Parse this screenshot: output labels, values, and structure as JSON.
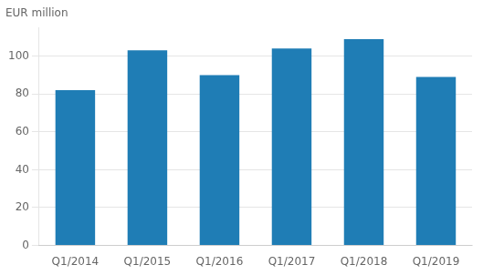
{
  "chart_data": {
    "type": "bar",
    "ylabel": "EUR million",
    "categories": [
      "Q1/2014",
      "Q1/2015",
      "Q1/2016",
      "Q1/2017",
      "Q1/2018",
      "Q1/2019"
    ],
    "values": [
      82,
      103,
      90,
      104,
      109,
      89
    ],
    "color": "#1f7db5",
    "ylim": [
      0,
      115
    ],
    "yticks": [
      0,
      20,
      40,
      60,
      80,
      100
    ],
    "grid": true
  }
}
